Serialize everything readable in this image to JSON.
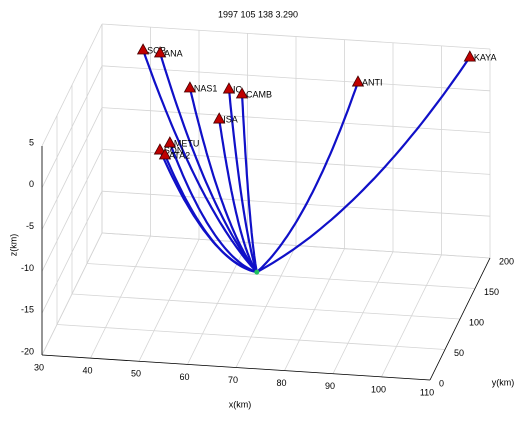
{
  "chart_data": {
    "type": "ray3d",
    "title": "1997  105  138  3.290",
    "xlabel": "x(km)",
    "ylabel": "y(km)",
    "zlabel": "z(km)",
    "xlim": [
      30,
      110
    ],
    "ylim": [
      0,
      200
    ],
    "zlim": [
      -20,
      5
    ],
    "xticks": [
      30,
      40,
      50,
      60,
      70,
      80,
      90,
      100,
      110
    ],
    "yticks": [
      0,
      50,
      100,
      150,
      200
    ],
    "zticks": [
      -20,
      -15,
      -10,
      -5,
      0,
      5
    ],
    "grid": true,
    "ray_color": "#1010c8",
    "marker_color": "#c00000",
    "source": {
      "x": 73.0,
      "y": 20.9,
      "z": -10,
      "color": "#20c060"
    },
    "stations": [
      {
        "name": "SOB",
        "x": 38.3,
        "y": 202.7,
        "z": 2
      },
      {
        "name": "ANA",
        "x": 42.0,
        "y": 199.7,
        "z": 2
      },
      {
        "name": "NAS1",
        "x": 51.4,
        "y": 147.1,
        "z": 2
      },
      {
        "name": "IC",
        "x": 59.3,
        "y": 149.5,
        "z": 2
      },
      {
        "name": "CAMB",
        "x": 62.4,
        "y": 142.9,
        "z": 2
      },
      {
        "name": "ANTI",
        "x": 84.4,
        "y": 173.8,
        "z": 2
      },
      {
        "name": "KAYA",
        "x": 104.3,
        "y": 224.9,
        "z": 2
      },
      {
        "name": "ISA",
        "x": 60.3,
        "y": 100.8,
        "z": 2
      },
      {
        "name": "METU",
        "x": 52.8,
        "y": 57.7,
        "z": 2
      },
      {
        "name": "SON",
        "x": 51.5,
        "y": 45.5,
        "z": 2
      },
      {
        "name": "ATA2",
        "x": 53.0,
        "y": 38.1,
        "z": 2
      }
    ]
  }
}
